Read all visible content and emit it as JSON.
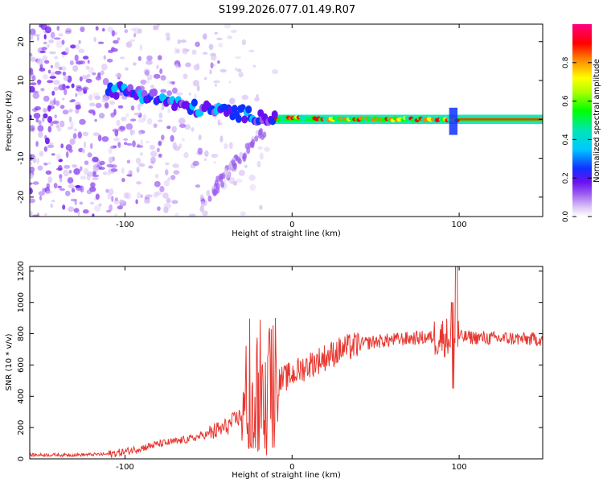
{
  "title": "S199.2026.077.01.49.R07",
  "chart_data": [
    {
      "type": "heatmap",
      "xlabel": "Height of straight line (km)",
      "ylabel": "Frequency (Hz)",
      "xlim": [
        -157,
        150
      ],
      "ylim": [
        -25,
        24.5
      ],
      "xticks": [
        -100,
        0,
        100
      ],
      "yticks": [
        -20,
        -10,
        0,
        10,
        20
      ],
      "colorbar": {
        "label": "Normalized spectral amplitude",
        "range": [
          0,
          1
        ],
        "ticks": [
          0.0,
          0.2,
          0.4,
          0.6,
          0.8
        ],
        "colormap": [
          "#ffffff",
          "#d9c4f5",
          "#9a5af0",
          "#6a0ff0",
          "#1030ff",
          "#00c8ff",
          "#00e6b4",
          "#00ff00",
          "#ffff00",
          "#ff8000",
          "#ff0000",
          "#ff0080"
        ]
      },
      "ridge": [
        {
          "x": -100,
          "y": 7.5
        },
        {
          "x": -90,
          "y": 6.5
        },
        {
          "x": -80,
          "y": 5.5
        },
        {
          "x": -70,
          "y": 4.0
        },
        {
          "x": -60,
          "y": 3.0
        },
        {
          "x": -50,
          "y": 2.5
        },
        {
          "x": -40,
          "y": 2.0
        },
        {
          "x": -30,
          "y": 1.5
        },
        {
          "x": -20,
          "y": 0.8
        },
        {
          "x": -10,
          "y": 0.0
        },
        {
          "x": 0,
          "y": 0.5
        },
        {
          "x": 20,
          "y": 0.0
        },
        {
          "x": 60,
          "y": 0.0
        },
        {
          "x": 95,
          "y": 0.0
        },
        {
          "x": 150,
          "y": 0.0
        }
      ]
    },
    {
      "type": "line",
      "xlabel": "Height of straight line (km)",
      "ylabel": "SNR (10 * v/v)",
      "xlim": [
        -157,
        150
      ],
      "ylim": [
        0,
        1230
      ],
      "xticks": [
        -100,
        0,
        100
      ],
      "yticks": [
        0,
        200,
        400,
        600,
        800,
        1000,
        1200
      ],
      "series": [
        {
          "color": "#e8362f",
          "points": [
            {
              "x": -157,
              "y": 25
            },
            {
              "x": -130,
              "y": 25
            },
            {
              "x": -110,
              "y": 30
            },
            {
              "x": -100,
              "y": 45
            },
            {
              "x": -90,
              "y": 70
            },
            {
              "x": -80,
              "y": 95
            },
            {
              "x": -70,
              "y": 110
            },
            {
              "x": -60,
              "y": 130
            },
            {
              "x": -50,
              "y": 160
            },
            {
              "x": -40,
              "y": 200
            },
            {
              "x": -30,
              "y": 280
            },
            {
              "x": -25,
              "y": 330
            },
            {
              "x": -20,
              "y": 370
            },
            {
              "x": -15,
              "y": 420
            },
            {
              "x": -10,
              "y": 480
            },
            {
              "x": 0,
              "y": 540
            },
            {
              "x": 10,
              "y": 600
            },
            {
              "x": 20,
              "y": 650
            },
            {
              "x": 30,
              "y": 700
            },
            {
              "x": 40,
              "y": 730
            },
            {
              "x": 50,
              "y": 750
            },
            {
              "x": 60,
              "y": 760
            },
            {
              "x": 70,
              "y": 770
            },
            {
              "x": 80,
              "y": 775
            },
            {
              "x": 90,
              "y": 780
            },
            {
              "x": 100,
              "y": 780
            },
            {
              "x": 110,
              "y": 775
            },
            {
              "x": 120,
              "y": 770
            },
            {
              "x": 130,
              "y": 770
            },
            {
              "x": 140,
              "y": 765
            },
            {
              "x": 150,
              "y": 765
            }
          ],
          "spikes": [
            {
              "x": -23,
              "y": 950
            },
            {
              "x": -17,
              "y": 910
            },
            {
              "x": 98,
              "y": 1230
            },
            {
              "x": 96,
              "y": 1000
            }
          ]
        }
      ]
    }
  ]
}
